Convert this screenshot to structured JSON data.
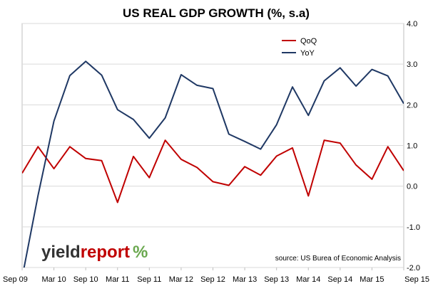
{
  "chart_data": {
    "type": "line",
    "title": "US REAL GDP GROWTH (%, s.a)",
    "categories": [
      "Sep 09",
      "Dec 09",
      "Mar 10",
      "Jun 10",
      "Sep 10",
      "Dec 10",
      "Mar 11",
      "Jun 11",
      "Sep 11",
      "Dec 11",
      "Mar 12",
      "Jun 12",
      "Sep 12",
      "Dec 12",
      "Mar 13",
      "Jun 13",
      "Sep 13",
      "Dec 13",
      "Mar 14",
      "Jun 14",
      "Sep 14",
      "Dec 14",
      "Mar 15",
      "Jun 15",
      "Sep 15"
    ],
    "x_tick_labels": [
      "Sep 09",
      "Mar 10",
      "Sep 10",
      "Mar 11",
      "Sep 11",
      "Mar 12",
      "Sep 12",
      "Mar 13",
      "Sep 13",
      "Mar 14",
      "Sep 14",
      "Mar 15",
      "Sep 15"
    ],
    "y_tick_labels": [
      "4.0",
      "3.0",
      "2.0",
      "1.0",
      "0.0",
      "-1.0",
      "-2.0"
    ],
    "ylim": [
      -2.0,
      4.0
    ],
    "grid": true,
    "legend_position": "top-right",
    "y_axis_side": "right",
    "series": [
      {
        "name": "QoQ",
        "color": "#c00000",
        "values": [
          0.32,
          0.97,
          0.43,
          0.97,
          0.68,
          0.63,
          -0.4,
          0.73,
          0.21,
          1.13,
          0.66,
          0.46,
          0.11,
          0.02,
          0.48,
          0.27,
          0.74,
          0.94,
          -0.24,
          1.13,
          1.06,
          0.52,
          0.17,
          0.97,
          0.38
        ]
      },
      {
        "name": "YoY",
        "color": "#1f3864",
        "values": [
          -2.25,
          -0.23,
          1.6,
          2.72,
          3.07,
          2.73,
          1.88,
          1.64,
          1.18,
          1.68,
          2.74,
          2.48,
          2.4,
          1.28,
          1.1,
          0.91,
          1.51,
          2.44,
          1.74,
          2.59,
          2.91,
          2.46,
          2.87,
          2.71,
          2.03
        ]
      }
    ],
    "source": "source: US Burea of Economic Analysis"
  },
  "logo": {
    "part1": "yield",
    "part2": "report",
    "symbol": "%"
  },
  "colors": {
    "qoq": "#c00000",
    "yoy": "#1f3864",
    "grid": "#d9d9d9",
    "logo_dark": "#333333",
    "logo_red": "#c00000",
    "logo_green": "#6aa84f"
  }
}
